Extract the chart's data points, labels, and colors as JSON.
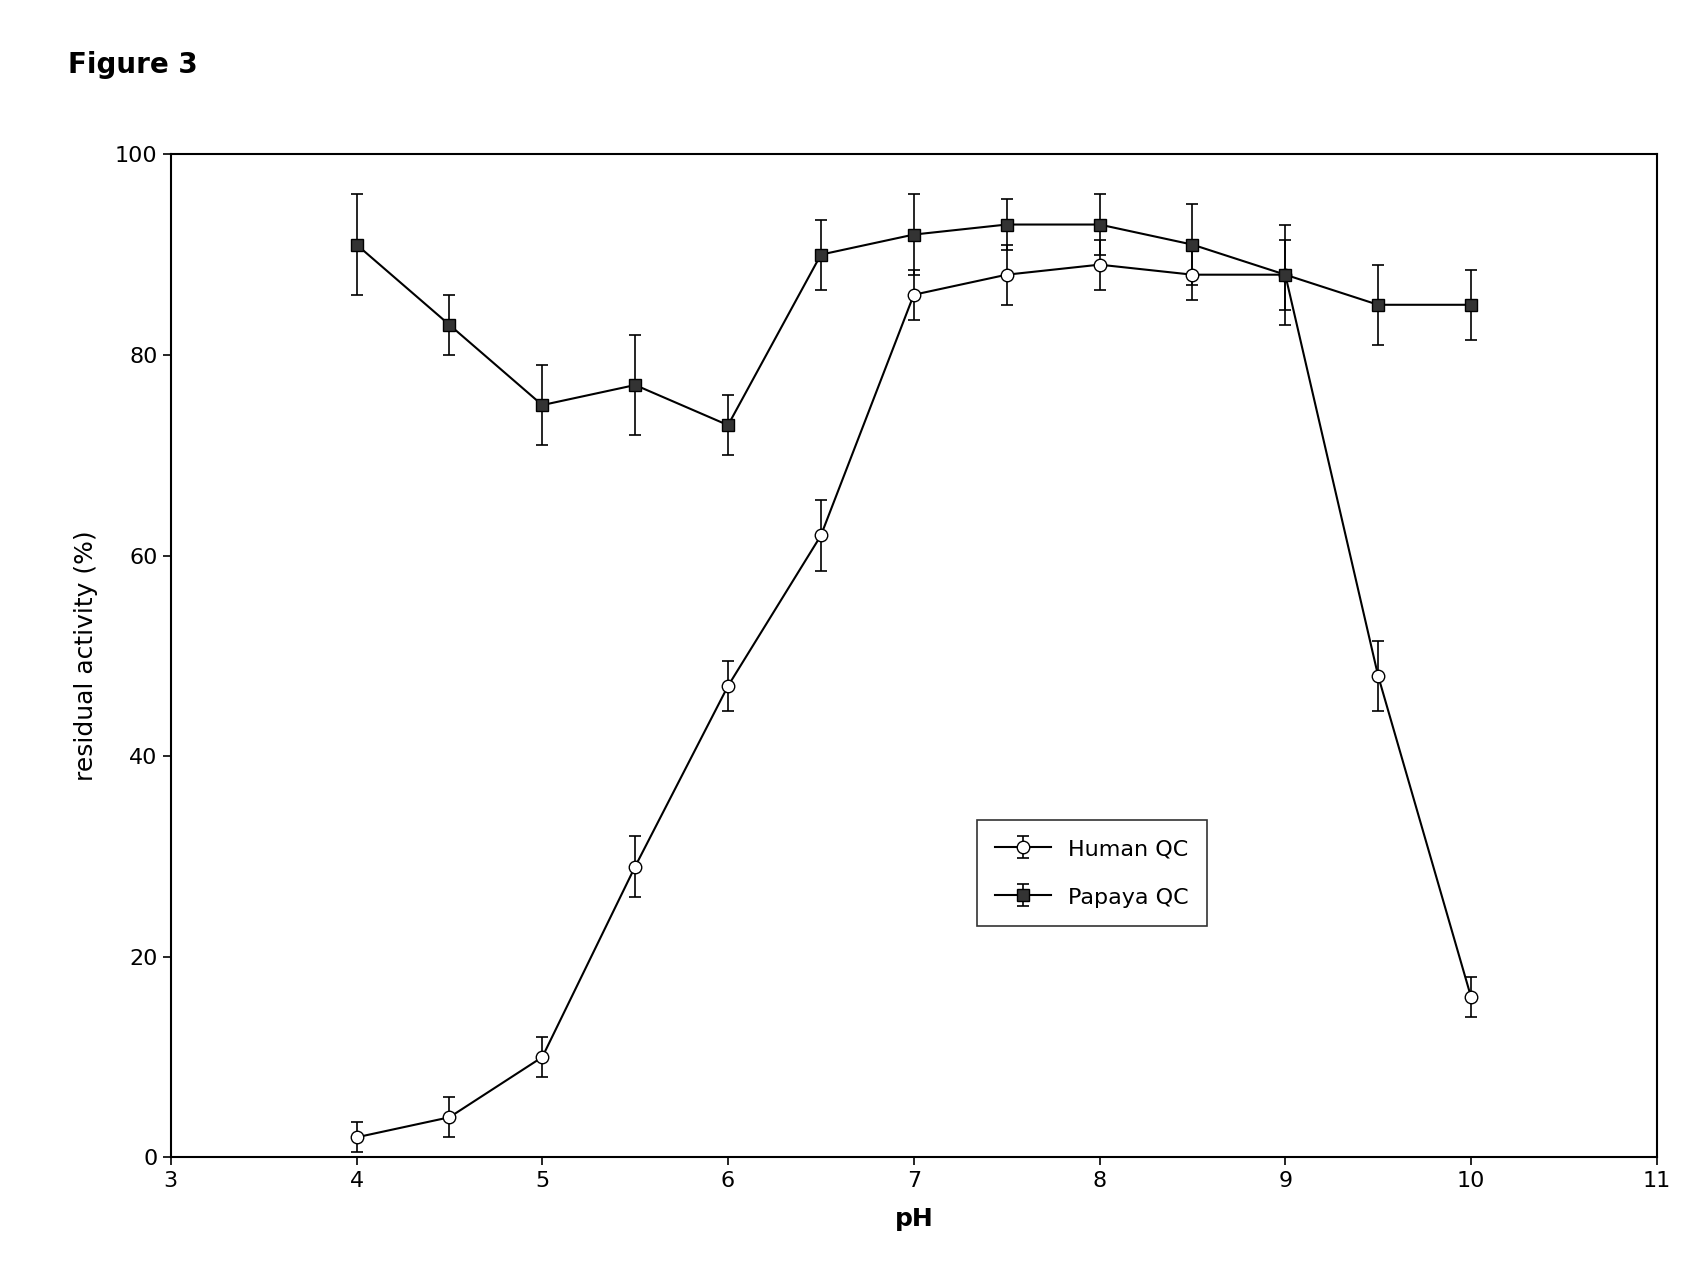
{
  "xlabel": "pH",
  "ylabel": "residual activity (%)",
  "xlim": [
    3,
    11
  ],
  "ylim": [
    0,
    100
  ],
  "xticks": [
    3,
    4,
    5,
    6,
    7,
    8,
    9,
    10,
    11
  ],
  "yticks": [
    0,
    20,
    40,
    60,
    80,
    100
  ],
  "human_qc": {
    "x": [
      4.0,
      4.5,
      5.0,
      5.5,
      6.0,
      6.5,
      7.0,
      7.5,
      8.0,
      8.5,
      9.0,
      9.5,
      10.0
    ],
    "y": [
      2.0,
      4.0,
      10.0,
      29.0,
      47.0,
      62.0,
      86.0,
      88.0,
      89.0,
      88.0,
      88.0,
      48.0,
      16.0
    ],
    "yerr": [
      1.5,
      2.0,
      2.0,
      3.0,
      2.5,
      3.5,
      2.5,
      3.0,
      2.5,
      2.5,
      3.5,
      3.5,
      2.0
    ],
    "label": "Human QC",
    "color": "#000000",
    "marker": "o",
    "markerfacecolor": "white",
    "markersize": 9
  },
  "papaya_qc": {
    "x": [
      4.0,
      4.5,
      5.0,
      5.5,
      6.0,
      6.5,
      7.0,
      7.5,
      8.0,
      8.5,
      9.0,
      9.5,
      10.0
    ],
    "y": [
      91.0,
      83.0,
      75.0,
      77.0,
      73.0,
      90.0,
      92.0,
      93.0,
      93.0,
      91.0,
      88.0,
      85.0,
      85.0
    ],
    "yerr": [
      5.0,
      3.0,
      4.0,
      5.0,
      3.0,
      3.5,
      4.0,
      2.5,
      3.0,
      4.0,
      5.0,
      4.0,
      3.5
    ],
    "label": "Papaya QC",
    "color": "#000000",
    "marker": "s",
    "markerfacecolor": "#333333",
    "markersize": 9
  },
  "background_color": "#ffffff",
  "figure_label": "Figure 3",
  "figure_label_fontsize": 20,
  "figure_label_fontweight": "bold",
  "axis_label_fontsize": 18,
  "tick_fontsize": 16,
  "legend_fontsize": 16,
  "linewidth": 1.5
}
